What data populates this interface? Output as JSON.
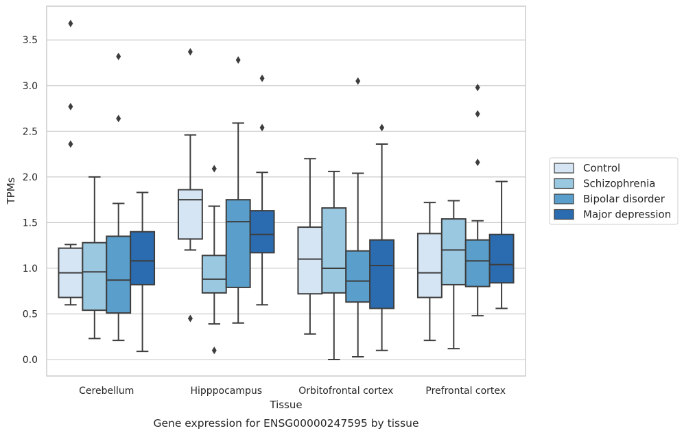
{
  "chart_data": {
    "type": "box",
    "caption": "Gene expression for ENSG00000247595 by tissue",
    "xlabel": "Tissue",
    "ylabel": "TPMs",
    "ylim": [
      -0.18,
      3.87
    ],
    "yticks": [
      "0.0",
      "0.5",
      "1.0",
      "1.5",
      "2.0",
      "2.5",
      "3.0",
      "3.5"
    ],
    "grid": true,
    "legend_position": "right",
    "categories": [
      "Cerebellum",
      "Hipppocampus",
      "Orbitofrontal cortex",
      "Prefrontal cortex"
    ],
    "series": [
      {
        "name": "Control",
        "color": "#d6e5f4",
        "boxes": [
          {
            "whisker_low": 0.6,
            "q1": 0.68,
            "median": 0.95,
            "q3": 1.22,
            "whisker_high": 1.26,
            "outliers": [
              3.68,
              2.77,
              2.36
            ]
          },
          {
            "whisker_low": 1.2,
            "q1": 1.32,
            "median": 1.75,
            "q3": 1.86,
            "whisker_high": 2.46,
            "outliers": [
              3.37,
              0.45
            ]
          },
          {
            "whisker_low": 0.28,
            "q1": 0.72,
            "median": 1.1,
            "q3": 1.45,
            "whisker_high": 2.2,
            "outliers": []
          },
          {
            "whisker_low": 0.21,
            "q1": 0.68,
            "median": 0.95,
            "q3": 1.38,
            "whisker_high": 1.72,
            "outliers": []
          }
        ]
      },
      {
        "name": "Schizophrenia",
        "color": "#9ac8e0",
        "boxes": [
          {
            "whisker_low": 0.23,
            "q1": 0.54,
            "median": 0.96,
            "q3": 1.28,
            "whisker_high": 2.0,
            "outliers": []
          },
          {
            "whisker_low": 0.39,
            "q1": 0.73,
            "median": 0.88,
            "q3": 1.14,
            "whisker_high": 1.68,
            "outliers": [
              2.09,
              0.1
            ]
          },
          {
            "whisker_low": 0.0,
            "q1": 0.73,
            "median": 1.0,
            "q3": 1.66,
            "whisker_high": 2.06,
            "outliers": []
          },
          {
            "whisker_low": 0.12,
            "q1": 0.82,
            "median": 1.2,
            "q3": 1.54,
            "whisker_high": 1.74,
            "outliers": []
          }
        ]
      },
      {
        "name": "Bipolar disorder",
        "color": "#5a9fcc",
        "boxes": [
          {
            "whisker_low": 0.21,
            "q1": 0.51,
            "median": 0.87,
            "q3": 1.35,
            "whisker_high": 1.71,
            "outliers": [
              3.32,
              2.64
            ]
          },
          {
            "whisker_low": 0.4,
            "q1": 0.79,
            "median": 1.51,
            "q3": 1.75,
            "whisker_high": 2.59,
            "outliers": [
              3.28
            ]
          },
          {
            "whisker_low": 0.03,
            "q1": 0.63,
            "median": 0.86,
            "q3": 1.19,
            "whisker_high": 2.04,
            "outliers": [
              3.05
            ]
          },
          {
            "whisker_low": 0.48,
            "q1": 0.8,
            "median": 1.08,
            "q3": 1.31,
            "whisker_high": 1.52,
            "outliers": [
              2.98,
              2.69,
              2.16
            ]
          }
        ]
      },
      {
        "name": "Major depression",
        "color": "#2b6cb0",
        "boxes": [
          {
            "whisker_low": 0.09,
            "q1": 0.82,
            "median": 1.08,
            "q3": 1.4,
            "whisker_high": 1.83,
            "outliers": []
          },
          {
            "whisker_low": 0.6,
            "q1": 1.17,
            "median": 1.37,
            "q3": 1.63,
            "whisker_high": 2.05,
            "outliers": [
              3.08,
              2.54
            ]
          },
          {
            "whisker_low": 0.1,
            "q1": 0.56,
            "median": 1.03,
            "q3": 1.31,
            "whisker_high": 2.36,
            "outliers": [
              2.54
            ]
          },
          {
            "whisker_low": 0.56,
            "q1": 0.84,
            "median": 1.04,
            "q3": 1.37,
            "whisker_high": 1.95,
            "outliers": []
          }
        ]
      }
    ]
  }
}
